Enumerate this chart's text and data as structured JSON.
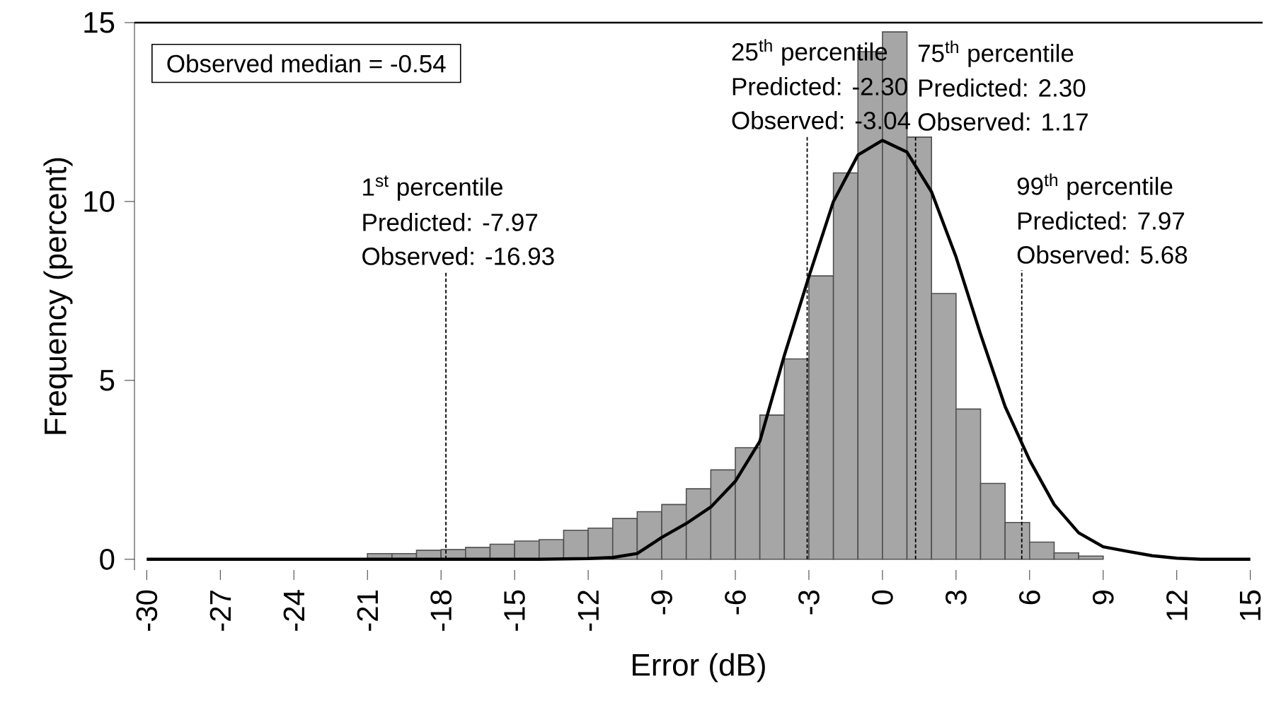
{
  "chart_data": {
    "type": "histogram",
    "xlabel": "Error (dB)",
    "ylabel": "Frequency (percent)",
    "bins": [
      -30,
      -29,
      -28,
      -27,
      -26,
      -25,
      -24,
      -23,
      -22,
      -21,
      -20,
      -19,
      -18,
      -17,
      -16,
      -15,
      -14,
      -13,
      -12,
      -11,
      -10,
      -9,
      -8,
      -7,
      -6,
      -5,
      -4,
      -3,
      -2,
      -1,
      0,
      1,
      2,
      3,
      4,
      5,
      6,
      7,
      8,
      9
    ],
    "values": [
      0,
      0,
      0,
      0,
      0,
      0,
      null,
      null,
      null,
      0.16,
      0.16,
      0.25,
      0.27,
      0.33,
      0.42,
      0.51,
      0.55,
      0.81,
      0.87,
      1.14,
      1.33,
      1.53,
      1.97,
      2.5,
      3.12,
      4.03,
      5.6,
      7.92,
      10.8,
      14.19,
      14.74,
      11.8,
      7.43,
      4.2,
      2.12,
      1.03,
      0.48,
      0.18,
      0.09
    ],
    "color": "#a6a6a6",
    "series": [
      {
        "type": "line",
        "color": "#000000",
        "x": [
          -30,
          -21,
          -14,
          -12,
          -11,
          -10,
          -9,
          -8,
          -7,
          -6,
          -5,
          -4,
          -3,
          -2,
          -1,
          0,
          1,
          2,
          3,
          4,
          5,
          6,
          7,
          8,
          9,
          10,
          11,
          12,
          13,
          15
        ],
        "values": [
          0,
          0,
          0,
          0.02,
          0.05,
          0.16,
          0.61,
          1.0,
          1.46,
          2.18,
          3.3,
          5.7,
          7.9,
          10.0,
          11.3,
          11.71,
          11.38,
          10.27,
          8.45,
          6.29,
          4.27,
          2.77,
          1.53,
          0.74,
          0.35,
          0.22,
          0.1,
          0.03,
          0,
          0
        ]
      }
    ],
    "xlim": [
      -30.5,
      15.5
    ],
    "ylim": [
      -0.3,
      15
    ],
    "xticks": [
      -30,
      -27,
      -24,
      -21,
      -18,
      -15,
      -12,
      -9,
      -6,
      -3,
      0,
      3,
      6,
      9,
      12,
      15
    ],
    "yticks": [
      0,
      5,
      10,
      15
    ],
    "ref_lines": [
      {
        "axis": "x",
        "value": -17.8,
        "line_style": "dashed",
        "color": "#000000"
      },
      {
        "axis": "x",
        "value": -3.07,
        "line_style": "dashed",
        "color": "#000000"
      },
      {
        "axis": "x",
        "value": 1.35,
        "line_style": "dashed",
        "color": "#000000"
      },
      {
        "axis": "x",
        "value": 5.68,
        "line_style": "dashed",
        "color": "#000000"
      }
    ],
    "annotations": [
      "Observed median = -0.54",
      "1$^{st}$ percentile",
      "Predicted: -7.97",
      "Observed: -16.93",
      "25$^{th}$ percentile",
      "Predicted: -2.30",
      "Observed: -3.04",
      "75$^{th}$ percentile",
      "Predicted: 2.30",
      "Observed: 1.17",
      "99$^{th}$ percentile",
      "Predicted: 7.97",
      "Observed: 5.68"
    ]
  }
}
